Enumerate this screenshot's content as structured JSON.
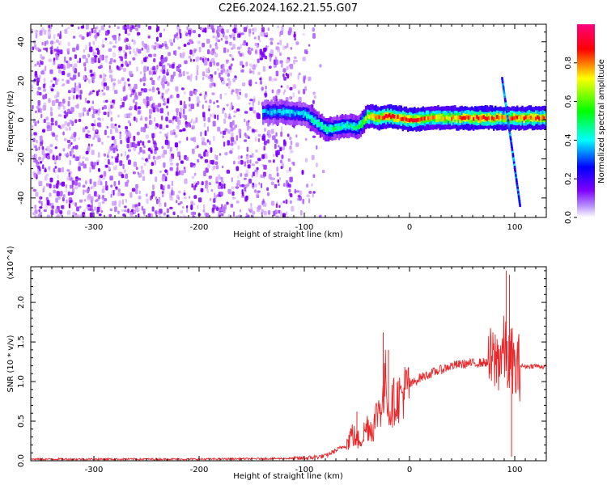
{
  "title": "C2E6.2024.162.21.55.G07",
  "chart_data": [
    {
      "type": "heatmap",
      "xlabel": "Height of straight line (km)",
      "ylabel": "Frequency (Hz)",
      "xlim": [
        -360,
        130
      ],
      "ylim": [
        -50,
        49
      ],
      "xticks": [
        -300,
        -200,
        -100,
        0,
        100
      ],
      "yticks": [
        -40,
        -20,
        0,
        20,
        40
      ],
      "colorbar": {
        "label": "Normalized spectral amplitude",
        "range": [
          0,
          1
        ],
        "ticks": [
          "0.0",
          "0.2",
          "0.4",
          "0.6",
          "0.8"
        ],
        "colors": [
          "#ffffff",
          "#7f00ff",
          "#0000ff",
          "#00ffff",
          "#00ff00",
          "#ffff00",
          "#ff0000",
          "#ff0080"
        ]
      },
      "noise_region": {
        "x_range": [
          -360,
          -100
        ],
        "y_range": [
          -50,
          49
        ],
        "amplitude": 0.2
      },
      "ridge": {
        "points": [
          {
            "x": -140,
            "y": 4,
            "amp": 0.35
          },
          {
            "x": -120,
            "y": 4,
            "amp": 0.4
          },
          {
            "x": -100,
            "y": 3,
            "amp": 0.4
          },
          {
            "x": -90,
            "y": -1,
            "amp": 0.45
          },
          {
            "x": -80,
            "y": -5,
            "amp": 0.5
          },
          {
            "x": -70,
            "y": -4,
            "amp": 0.45
          },
          {
            "x": -60,
            "y": -3,
            "amp": 0.45
          },
          {
            "x": -50,
            "y": -4,
            "amp": 0.45
          },
          {
            "x": -40,
            "y": 2,
            "amp": 0.75
          },
          {
            "x": -30,
            "y": 1,
            "amp": 0.8
          },
          {
            "x": -20,
            "y": 2,
            "amp": 0.85
          },
          {
            "x": -10,
            "y": 1,
            "amp": 0.8
          },
          {
            "x": 0,
            "y": 0,
            "amp": 0.85
          },
          {
            "x": 20,
            "y": 1,
            "amp": 0.75
          },
          {
            "x": 40,
            "y": 1,
            "amp": 0.75
          },
          {
            "x": 60,
            "y": 1,
            "amp": 0.85
          },
          {
            "x": 80,
            "y": 1,
            "amp": 0.85
          },
          {
            "x": 90,
            "y": 1,
            "amp": 0.75
          },
          {
            "x": 100,
            "y": 1,
            "amp": 0.8
          },
          {
            "x": 130,
            "y": 1,
            "amp": 0.8
          }
        ]
      },
      "streak": {
        "points": [
          {
            "x": 88,
            "y": 22
          },
          {
            "x": 105,
            "y": -43
          }
        ],
        "amplitude": 0.4
      }
    },
    {
      "type": "line",
      "xlabel": "Height of straight line (km)",
      "ylabel": "SNR (10 * v/v)",
      "yscale_label": "(x10^4)",
      "xlim": [
        -360,
        130
      ],
      "ylim": [
        0,
        2.45
      ],
      "xticks": [
        -300,
        -200,
        -100,
        0,
        100
      ],
      "yticks": [
        "0.0",
        "0.5",
        "1.0",
        "1.5",
        "2.0"
      ],
      "color": "#e8272a",
      "series": [
        {
          "x": [
            -360,
            -300,
            -200,
            -100,
            -80,
            -60,
            -55,
            -50,
            -45,
            -40,
            -35,
            -30,
            -25,
            -22,
            -20,
            -15,
            -10,
            0,
            10,
            20,
            30,
            40,
            50,
            60,
            70,
            80,
            85,
            90,
            95,
            98,
            100,
            105,
            110,
            120,
            130
          ],
          "y": [
            0.02,
            0.02,
            0.02,
            0.03,
            0.06,
            0.2,
            0.35,
            0.25,
            0.3,
            0.45,
            0.4,
            0.65,
            0.75,
            1.15,
            0.6,
            0.75,
            0.8,
            0.95,
            1.05,
            1.1,
            1.15,
            1.2,
            1.22,
            1.23,
            1.24,
            1.25,
            1.3,
            1.4,
            1.2,
            1.3,
            1.1,
            1.2,
            1.19,
            1.2,
            1.18
          ],
          "spikes": [
            {
              "x": -50,
              "y": 0.62
            },
            {
              "x": -25,
              "y": 1.62
            },
            {
              "x": -20,
              "y": 1.4
            },
            {
              "x": 92,
              "y": 2.4
            },
            {
              "x": 95,
              "y": 2.35
            },
            {
              "x": 97,
              "y": 0.05
            }
          ]
        }
      ]
    }
  ]
}
